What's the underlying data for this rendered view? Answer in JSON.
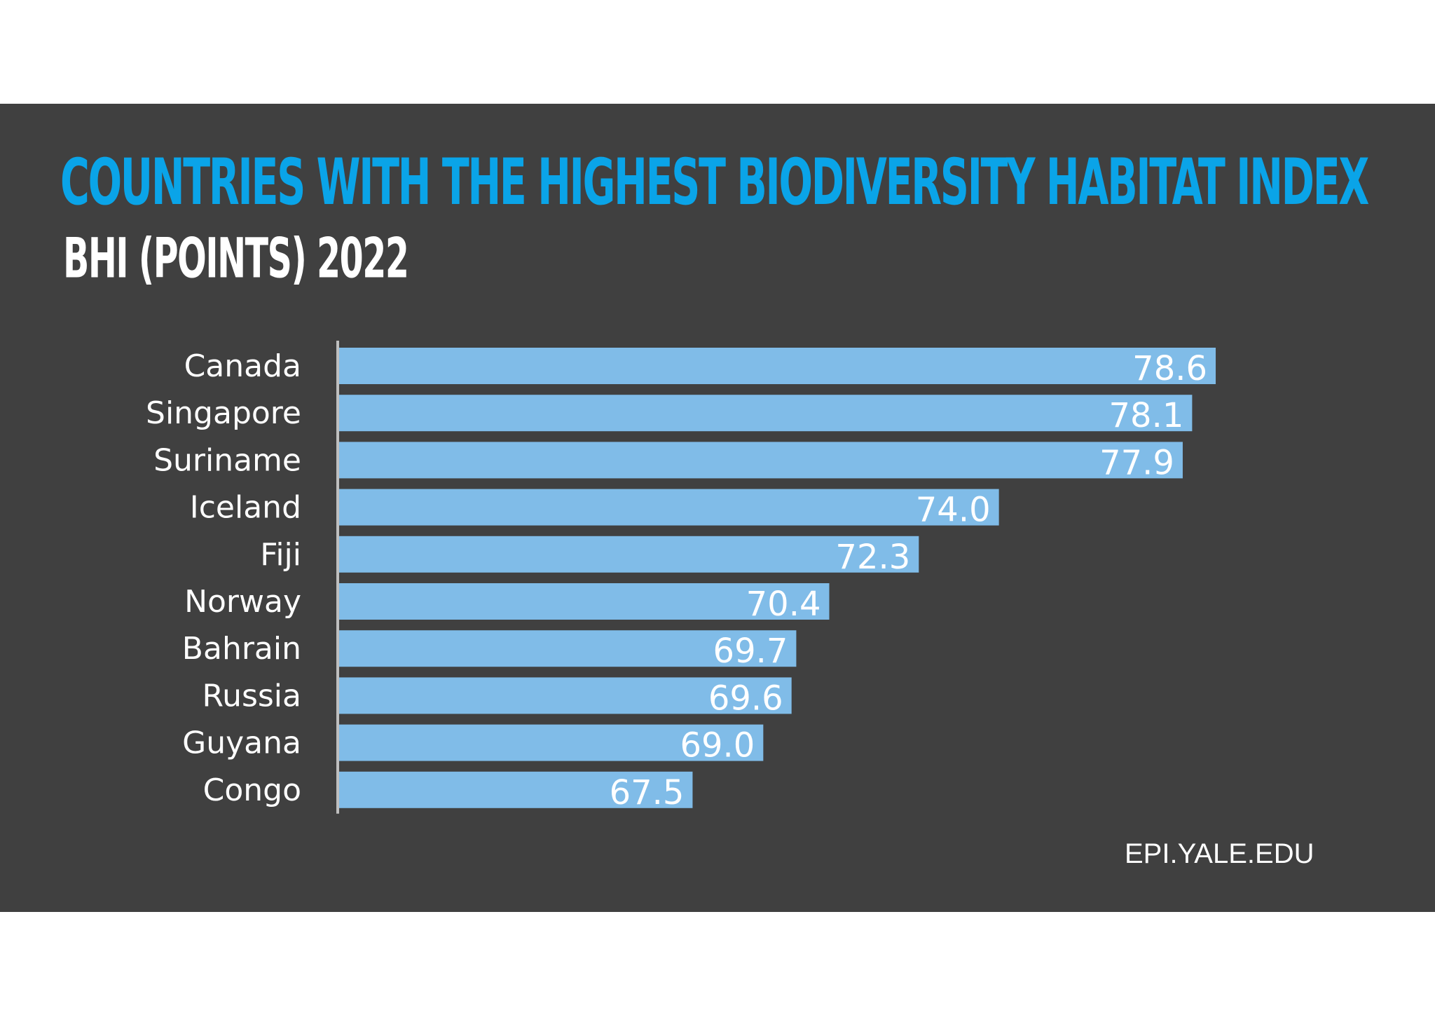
{
  "title": "COUNTRIES WITH THE HIGHEST BIODIVERSITY HABITAT INDEX",
  "subtitle": "BHI (POINTS) 2022",
  "source": "EPI.YALE.EDU",
  "colors": {
    "background": "#404040",
    "title": "#0AA4E8",
    "bar": "#80BCE8",
    "axis": "#BFBFBF",
    "text": "#FFFFFF"
  },
  "chart_data": {
    "type": "bar",
    "orientation": "horizontal",
    "title": "COUNTRIES WITH THE HIGHEST BIODIVERSITY HABITAT INDEX",
    "subtitle": "BHI (POINTS) 2022",
    "categories": [
      "Canada",
      "Singapore",
      "Suriname",
      "Iceland",
      "Fiji",
      "Norway",
      "Bahrain",
      "Russia",
      "Guyana",
      "Congo"
    ],
    "values": [
      78.6,
      78.1,
      77.9,
      74.0,
      72.3,
      70.4,
      69.7,
      69.6,
      69.0,
      67.5
    ],
    "value_labels": [
      "78.6",
      "78.1",
      "77.9",
      "74.0",
      "72.3",
      "70.4",
      "69.7",
      "69.6",
      "69.0",
      "67.5"
    ],
    "xlim": [
      60,
      79
    ],
    "grid": false,
    "legend": "none"
  }
}
